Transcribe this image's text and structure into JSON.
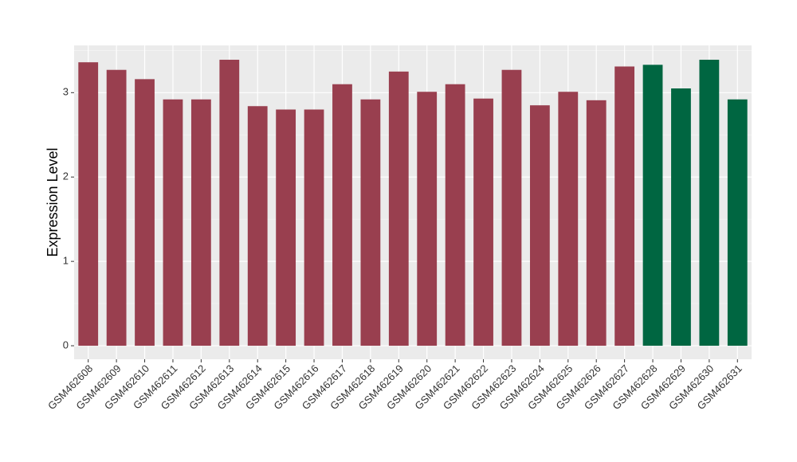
{
  "chart_data": {
    "type": "bar",
    "y_label": "Expression Level",
    "categories": [
      "GSM462608",
      "GSM462609",
      "GSM462610",
      "GSM462611",
      "GSM462612",
      "GSM462613",
      "GSM462614",
      "GSM462615",
      "GSM462616",
      "GSM462617",
      "GSM462618",
      "GSM462619",
      "GSM462620",
      "GSM462621",
      "GSM462622",
      "GSM462623",
      "GSM462624",
      "GSM462625",
      "GSM462626",
      "GSM462627",
      "GSM462628",
      "GSM462629",
      "GSM462630",
      "GSM462631"
    ],
    "values": [
      3.36,
      3.27,
      3.16,
      2.92,
      2.92,
      3.39,
      2.84,
      2.8,
      2.8,
      3.1,
      2.92,
      3.25,
      3.01,
      3.1,
      2.93,
      3.27,
      2.85,
      3.01,
      2.91,
      3.31,
      3.33,
      3.05,
      3.39,
      2.92
    ],
    "colors": [
      "#993f4f",
      "#993f4f",
      "#993f4f",
      "#993f4f",
      "#993f4f",
      "#993f4f",
      "#993f4f",
      "#993f4f",
      "#993f4f",
      "#993f4f",
      "#993f4f",
      "#993f4f",
      "#993f4f",
      "#993f4f",
      "#993f4f",
      "#993f4f",
      "#993f4f",
      "#993f4f",
      "#993f4f",
      "#993f4f",
      "#006641",
      "#006641",
      "#006641",
      "#006641"
    ],
    "ylim": [
      -0.16,
      3.56
    ],
    "yticks": [
      0,
      1,
      2,
      3
    ],
    "grid": true
  }
}
